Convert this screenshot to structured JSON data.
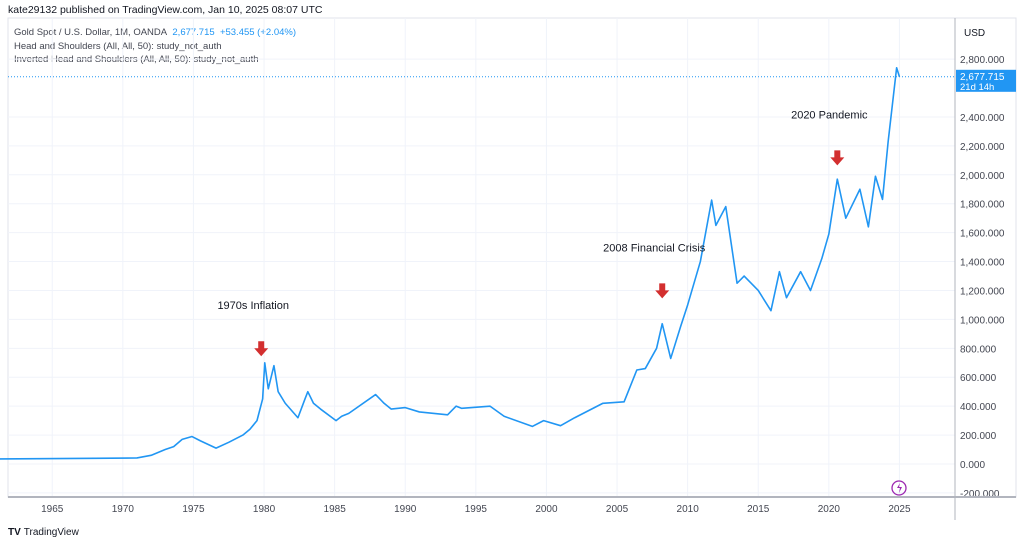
{
  "header": {
    "published": "kate29132 published on TradingView.com, Jan 10, 2025 08:07 UTC"
  },
  "legend": {
    "symbol": "Gold Spot / U.S. Dollar, 1M, OANDA",
    "price": "2,677.715",
    "change": "+53.455 (+2.04%)",
    "studies": [
      "Head and Shoulders (All, All, 50): study_not_auth",
      "Inverted Head and Shoulders (All, All, 50): study_not_auth"
    ]
  },
  "price_axis": {
    "currency": "USD",
    "last_price": "2,677.715",
    "countdown": "21d 14h"
  },
  "footer": {
    "brand": "TradingView"
  },
  "colors": {
    "line": "#2196f3",
    "arrow": "#d32f2f",
    "badge": "#2196f3",
    "flash": "#9c27b0"
  },
  "icons": [
    "down-arrow-icon",
    "flash-icon",
    "tradingview-logo-icon"
  ],
  "chart_data": {
    "type": "line",
    "title": "",
    "xlabel": "",
    "ylabel": "",
    "xlim": [
      1961.3,
      2028.5
    ],
    "ylim": [
      -250,
      2950
    ],
    "grid": true,
    "xticks": [
      1965,
      1970,
      1975,
      1980,
      1985,
      1990,
      1995,
      2000,
      2005,
      2010,
      2015,
      2020,
      2025
    ],
    "yticks": [
      -200,
      0,
      200,
      400,
      600,
      800,
      1000,
      1200,
      1400,
      1600,
      1800,
      2000,
      2200,
      2400,
      2800
    ],
    "ytick_labels": [
      "-200.000",
      "0.000",
      "200.000",
      "400.000",
      "600.000",
      "800.000",
      "1,000.000",
      "1,200.000",
      "1,400.000",
      "1,600.000",
      "1,800.000",
      "2,000.000",
      "2,200.000",
      "2,400.000",
      "2,800.000"
    ],
    "series": [
      {
        "x": [
          1961.3,
          1968,
          1971,
          1972,
          1973,
          1973.6,
          1974.2,
          1974.9,
          1975.5,
          1976.6,
          1977.5,
          1978.5,
          1979.0,
          1979.5,
          1979.9,
          1980.05,
          1980.3,
          1980.7,
          1981,
          1981.5,
          1982.4,
          1982.9,
          1983.1,
          1983.5,
          1984,
          1985.1,
          1985.5,
          1986,
          1987.9,
          1988.5,
          1989,
          1990,
          1991,
          1993,
          1993.6,
          1994,
          1996,
          1997,
          1999,
          1999.8,
          2001,
          2002,
          2003,
          2004,
          2005.5,
          2006.4,
          2007,
          2007.8,
          2008.2,
          2008.8,
          2009.5,
          2010,
          2010.9,
          2011.7,
          2012,
          2012.7,
          2013.5,
          2014,
          2015,
          2015.9,
          2016.5,
          2017,
          2018,
          2018.7,
          2019.5,
          2020,
          2020.6,
          2021.2,
          2022.2,
          2022.8,
          2023.3,
          2023.8,
          2024.2,
          2024.8,
          2025
        ],
        "values": [
          35,
          39,
          42,
          60,
          100,
          120,
          170,
          190,
          160,
          110,
          150,
          200,
          240,
          300,
          450,
          700,
          520,
          680,
          500,
          420,
          320,
          450,
          500,
          420,
          380,
          300,
          330,
          350,
          480,
          420,
          380,
          390,
          360,
          340,
          400,
          385,
          400,
          330,
          260,
          300,
          265,
          320,
          370,
          420,
          430,
          650,
          660,
          800,
          970,
          730,
          950,
          1100,
          1400,
          1825,
          1650,
          1780,
          1250,
          1300,
          1200,
          1060,
          1330,
          1150,
          1330,
          1200,
          1420,
          1590,
          1970,
          1700,
          1900,
          1640,
          1990,
          1830,
          2230,
          2740,
          2678
        ]
      }
    ],
    "annotations": [
      {
        "text": "1970s Inflation",
        "x": 1979.8,
        "y": 780
      },
      {
        "text": "2008 Financial Crisis",
        "x": 2008.2,
        "y": 1180
      },
      {
        "text": "2020 Pandemic",
        "x": 2020.6,
        "y": 2100
      }
    ],
    "last_value": 2677.715
  }
}
